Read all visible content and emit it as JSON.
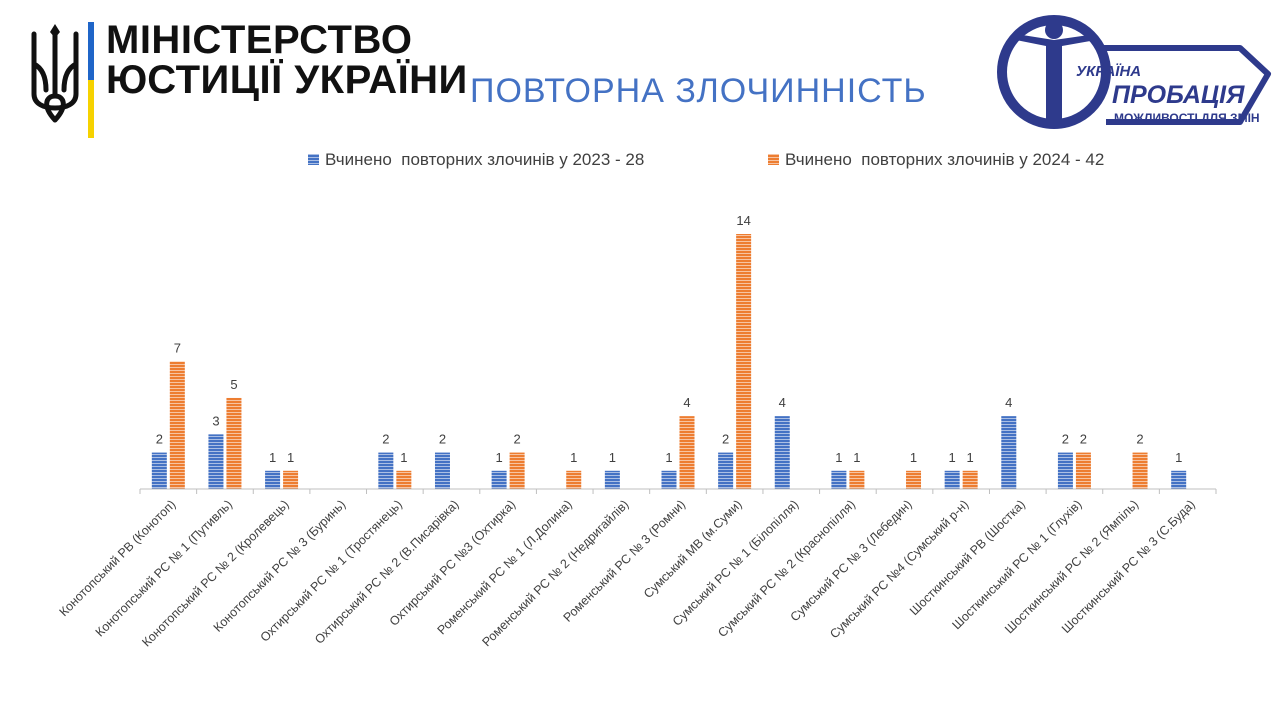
{
  "header": {
    "ministry_line_1": "МІНІСТЕРСТВО",
    "ministry_line_2": "ЮСТИЦІЇ УКРАЇНИ",
    "title": "ПОВТОРНА ЗЛОЧИННІСТЬ",
    "probation_logo": {
      "line_1": "УКРАЇНА",
      "line_2": "ПРОБАЦІЯ",
      "line_3": "МОЖЛИВОСТІ ДЛЯ ЗМІН"
    }
  },
  "colors": {
    "series_2023": "#4472c4",
    "series_2024": "#ed7d31",
    "title": "#4472c4",
    "axis": "#bfbfbf",
    "label": "#404040"
  },
  "chart_data": {
    "type": "bar",
    "title": "",
    "xlabel": "",
    "ylabel": "",
    "legend": "top",
    "grid": false,
    "ylim": [
      0,
      14
    ],
    "categories": [
      "Конотопський РВ (Конотоп)",
      "Конотопський РС № 1 (Путивль)",
      "Конотопський РС № 2 (Кролевець)",
      "Конотопський РС № 3 (Буринь)",
      "Охтирський РС № 1 (Тростянець)",
      "Охтирський РС № 2 (В.Писарівка)",
      "Охтирський РС №3 (Охтирка)",
      "Роменський РС № 1 (Л.Долина)",
      "Роменський РС № 2 (Недригайлів)",
      "Роменський РС № 3 (Ромни)",
      "Сумський МВ (м.Суми)",
      "Сумський РС № 1 (Білопілля)",
      "Сумський РС № 2 (Краснопілля)",
      "Сумський РС № 3 (Лебедин)",
      "Сумський РС №4 (Сумський р-н)",
      "Шосткинський РВ (Шостка)",
      "Шосткинський РС № 1 (Глухів)",
      "Шосткинський РС № 2 (Ямпіль)",
      "Шосткинський РС № 3 (С.Буда)"
    ],
    "series": [
      {
        "name": "Вчинено  повторних злочинів у 2023 - 28",
        "color": "#4472c4",
        "values": [
          2,
          3,
          1,
          0,
          2,
          2,
          1,
          0,
          1,
          1,
          2,
          4,
          1,
          0,
          1,
          4,
          2,
          0,
          1
        ]
      },
      {
        "name": "Вчинено  повторних злочинів у 2024 - 42",
        "color": "#ed7d31",
        "values": [
          7,
          5,
          1,
          0,
          1,
          0,
          2,
          1,
          0,
          4,
          14,
          0,
          1,
          1,
          1,
          0,
          2,
          2,
          0
        ]
      }
    ]
  }
}
